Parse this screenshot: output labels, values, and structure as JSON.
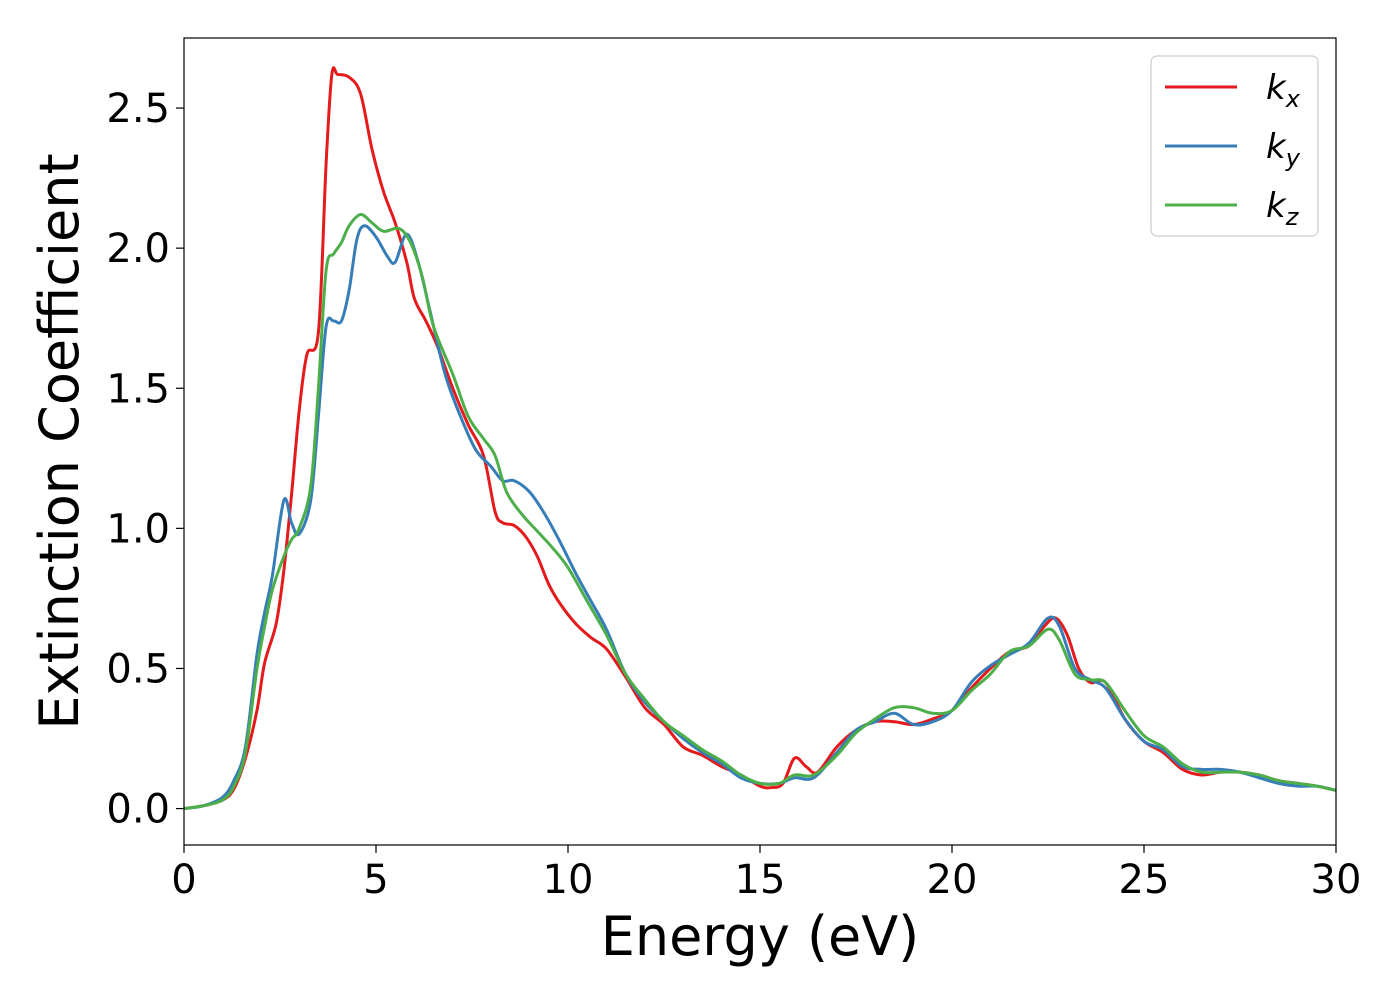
{
  "chart_data": {
    "type": "line",
    "title": "",
    "xlabel": "Energy (eV)",
    "ylabel": "Extinction Coefficient",
    "xlim": [
      0,
      30
    ],
    "ylim": [
      -0.13,
      2.75
    ],
    "xticks": [
      0,
      5,
      10,
      15,
      20,
      25,
      30
    ],
    "yticks": [
      0.0,
      0.5,
      1.0,
      1.5,
      2.0,
      2.5
    ],
    "xtick_labels": [
      "0",
      "5",
      "10",
      "15",
      "20",
      "25",
      "30"
    ],
    "ytick_labels": [
      "0.0",
      "0.5",
      "1.0",
      "1.5",
      "2.0",
      "2.5"
    ],
    "grid": false,
    "legend": "top-right",
    "series": [
      {
        "name": "k",
        "subscript": "x",
        "color": "#e41a1c",
        "points": [
          [
            0,
            0
          ],
          [
            0.5,
            0.01
          ],
          [
            1,
            0.03
          ],
          [
            1.3,
            0.07
          ],
          [
            1.6,
            0.18
          ],
          [
            1.9,
            0.35
          ],
          [
            2.1,
            0.52
          ],
          [
            2.4,
            0.66
          ],
          [
            2.6,
            0.85
          ],
          [
            2.8,
            1.12
          ],
          [
            3.0,
            1.42
          ],
          [
            3.2,
            1.62
          ],
          [
            3.5,
            1.7
          ],
          [
            3.7,
            2.3
          ],
          [
            3.85,
            2.62
          ],
          [
            4.0,
            2.62
          ],
          [
            4.3,
            2.61
          ],
          [
            4.6,
            2.55
          ],
          [
            4.9,
            2.35
          ],
          [
            5.2,
            2.2
          ],
          [
            5.5,
            2.09
          ],
          [
            5.8,
            1.95
          ],
          [
            6.0,
            1.82
          ],
          [
            6.3,
            1.74
          ],
          [
            6.6,
            1.65
          ],
          [
            7.0,
            1.5
          ],
          [
            7.4,
            1.37
          ],
          [
            7.8,
            1.26
          ],
          [
            8.1,
            1.06
          ],
          [
            8.3,
            1.02
          ],
          [
            8.6,
            1.01
          ],
          [
            8.9,
            0.97
          ],
          [
            9.2,
            0.9
          ],
          [
            9.5,
            0.8
          ],
          [
            9.8,
            0.73
          ],
          [
            10.2,
            0.66
          ],
          [
            10.6,
            0.61
          ],
          [
            11.0,
            0.57
          ],
          [
            11.5,
            0.47
          ],
          [
            12.0,
            0.36
          ],
          [
            12.5,
            0.3
          ],
          [
            13.0,
            0.22
          ],
          [
            13.5,
            0.19
          ],
          [
            14.0,
            0.15
          ],
          [
            14.5,
            0.12
          ],
          [
            15.0,
            0.08
          ],
          [
            15.3,
            0.075
          ],
          [
            15.6,
            0.09
          ],
          [
            15.9,
            0.18
          ],
          [
            16.2,
            0.15
          ],
          [
            16.5,
            0.13
          ],
          [
            17.0,
            0.22
          ],
          [
            17.5,
            0.28
          ],
          [
            18.0,
            0.31
          ],
          [
            18.5,
            0.31
          ],
          [
            19.0,
            0.3
          ],
          [
            19.5,
            0.32
          ],
          [
            20.0,
            0.35
          ],
          [
            20.5,
            0.43
          ],
          [
            21.0,
            0.5
          ],
          [
            21.5,
            0.56
          ],
          [
            22.0,
            0.58
          ],
          [
            22.4,
            0.65
          ],
          [
            22.7,
            0.68
          ],
          [
            23.0,
            0.62
          ],
          [
            23.3,
            0.5
          ],
          [
            23.6,
            0.45
          ],
          [
            24.0,
            0.45
          ],
          [
            24.5,
            0.32
          ],
          [
            25.0,
            0.24
          ],
          [
            25.5,
            0.2
          ],
          [
            26.0,
            0.14
          ],
          [
            26.5,
            0.12
          ],
          [
            27.0,
            0.13
          ],
          [
            27.5,
            0.13
          ],
          [
            28.0,
            0.12
          ],
          [
            28.5,
            0.1
          ],
          [
            29.0,
            0.09
          ],
          [
            29.5,
            0.08
          ],
          [
            30.0,
            0.065
          ]
        ]
      },
      {
        "name": "k",
        "subscript": "y",
        "color": "#377eb8",
        "points": [
          [
            0,
            0
          ],
          [
            0.5,
            0.01
          ],
          [
            1,
            0.04
          ],
          [
            1.3,
            0.1
          ],
          [
            1.6,
            0.22
          ],
          [
            1.9,
            0.55
          ],
          [
            2.1,
            0.7
          ],
          [
            2.3,
            0.83
          ],
          [
            2.6,
            1.1
          ],
          [
            2.8,
            1.02
          ],
          [
            3.0,
            0.98
          ],
          [
            3.3,
            1.1
          ],
          [
            3.5,
            1.4
          ],
          [
            3.7,
            1.72
          ],
          [
            3.9,
            1.74
          ],
          [
            4.1,
            1.74
          ],
          [
            4.3,
            1.85
          ],
          [
            4.5,
            2.03
          ],
          [
            4.7,
            2.08
          ],
          [
            5.0,
            2.04
          ],
          [
            5.3,
            1.97
          ],
          [
            5.5,
            1.95
          ],
          [
            5.8,
            2.05
          ],
          [
            6.1,
            1.95
          ],
          [
            6.4,
            1.78
          ],
          [
            6.8,
            1.55
          ],
          [
            7.2,
            1.4
          ],
          [
            7.6,
            1.28
          ],
          [
            8.0,
            1.22
          ],
          [
            8.3,
            1.17
          ],
          [
            8.6,
            1.17
          ],
          [
            9.0,
            1.13
          ],
          [
            9.4,
            1.05
          ],
          [
            9.8,
            0.95
          ],
          [
            10.2,
            0.84
          ],
          [
            10.6,
            0.74
          ],
          [
            11.0,
            0.64
          ],
          [
            11.5,
            0.48
          ],
          [
            12.0,
            0.38
          ],
          [
            12.5,
            0.31
          ],
          [
            13.0,
            0.25
          ],
          [
            13.5,
            0.2
          ],
          [
            14.0,
            0.16
          ],
          [
            14.5,
            0.11
          ],
          [
            15.0,
            0.09
          ],
          [
            15.5,
            0.09
          ],
          [
            15.9,
            0.11
          ],
          [
            16.4,
            0.11
          ],
          [
            17.0,
            0.2
          ],
          [
            17.5,
            0.28
          ],
          [
            18.0,
            0.31
          ],
          [
            18.5,
            0.34
          ],
          [
            19.0,
            0.3
          ],
          [
            19.5,
            0.31
          ],
          [
            20.0,
            0.35
          ],
          [
            20.5,
            0.45
          ],
          [
            21.0,
            0.51
          ],
          [
            21.5,
            0.55
          ],
          [
            22.0,
            0.59
          ],
          [
            22.5,
            0.68
          ],
          [
            22.8,
            0.65
          ],
          [
            23.2,
            0.5
          ],
          [
            23.6,
            0.46
          ],
          [
            24.0,
            0.43
          ],
          [
            24.5,
            0.32
          ],
          [
            25.0,
            0.24
          ],
          [
            25.5,
            0.21
          ],
          [
            26.0,
            0.15
          ],
          [
            26.5,
            0.14
          ],
          [
            27.0,
            0.14
          ],
          [
            27.5,
            0.13
          ],
          [
            28.0,
            0.11
          ],
          [
            28.5,
            0.09
          ],
          [
            29.0,
            0.08
          ],
          [
            29.5,
            0.08
          ],
          [
            30.0,
            0.065
          ]
        ]
      },
      {
        "name": "k",
        "subscript": "z",
        "color": "#4daf4a",
        "points": [
          [
            0,
            0
          ],
          [
            0.5,
            0.01
          ],
          [
            1,
            0.03
          ],
          [
            1.3,
            0.08
          ],
          [
            1.6,
            0.2
          ],
          [
            1.9,
            0.5
          ],
          [
            2.1,
            0.65
          ],
          [
            2.3,
            0.78
          ],
          [
            2.6,
            0.9
          ],
          [
            2.8,
            0.96
          ],
          [
            3.0,
            1.0
          ],
          [
            3.3,
            1.15
          ],
          [
            3.5,
            1.5
          ],
          [
            3.7,
            1.92
          ],
          [
            3.9,
            1.98
          ],
          [
            4.1,
            2.02
          ],
          [
            4.3,
            2.08
          ],
          [
            4.6,
            2.12
          ],
          [
            4.9,
            2.09
          ],
          [
            5.2,
            2.06
          ],
          [
            5.6,
            2.07
          ],
          [
            5.9,
            2.02
          ],
          [
            6.2,
            1.9
          ],
          [
            6.5,
            1.72
          ],
          [
            7.0,
            1.55
          ],
          [
            7.4,
            1.4
          ],
          [
            7.8,
            1.32
          ],
          [
            8.1,
            1.26
          ],
          [
            8.4,
            1.13
          ],
          [
            8.8,
            1.05
          ],
          [
            9.2,
            0.99
          ],
          [
            9.6,
            0.93
          ],
          [
            10.0,
            0.86
          ],
          [
            10.5,
            0.74
          ],
          [
            11.0,
            0.62
          ],
          [
            11.5,
            0.48
          ],
          [
            12.0,
            0.39
          ],
          [
            12.5,
            0.31
          ],
          [
            13.0,
            0.26
          ],
          [
            13.5,
            0.21
          ],
          [
            14.0,
            0.17
          ],
          [
            14.5,
            0.12
          ],
          [
            15.0,
            0.09
          ],
          [
            15.5,
            0.09
          ],
          [
            15.9,
            0.12
          ],
          [
            16.4,
            0.12
          ],
          [
            17.0,
            0.19
          ],
          [
            17.5,
            0.27
          ],
          [
            18.0,
            0.32
          ],
          [
            18.5,
            0.36
          ],
          [
            19.0,
            0.36
          ],
          [
            19.5,
            0.34
          ],
          [
            20.0,
            0.35
          ],
          [
            20.5,
            0.42
          ],
          [
            21.0,
            0.48
          ],
          [
            21.5,
            0.56
          ],
          [
            22.0,
            0.58
          ],
          [
            22.5,
            0.64
          ],
          [
            22.8,
            0.6
          ],
          [
            23.2,
            0.48
          ],
          [
            23.6,
            0.46
          ],
          [
            24.0,
            0.45
          ],
          [
            24.5,
            0.35
          ],
          [
            25.0,
            0.26
          ],
          [
            25.5,
            0.22
          ],
          [
            26.0,
            0.16
          ],
          [
            26.5,
            0.13
          ],
          [
            27.0,
            0.13
          ],
          [
            27.5,
            0.13
          ],
          [
            28.0,
            0.12
          ],
          [
            28.5,
            0.1
          ],
          [
            29.0,
            0.09
          ],
          [
            29.5,
            0.08
          ],
          [
            30.0,
            0.065
          ]
        ]
      }
    ]
  }
}
